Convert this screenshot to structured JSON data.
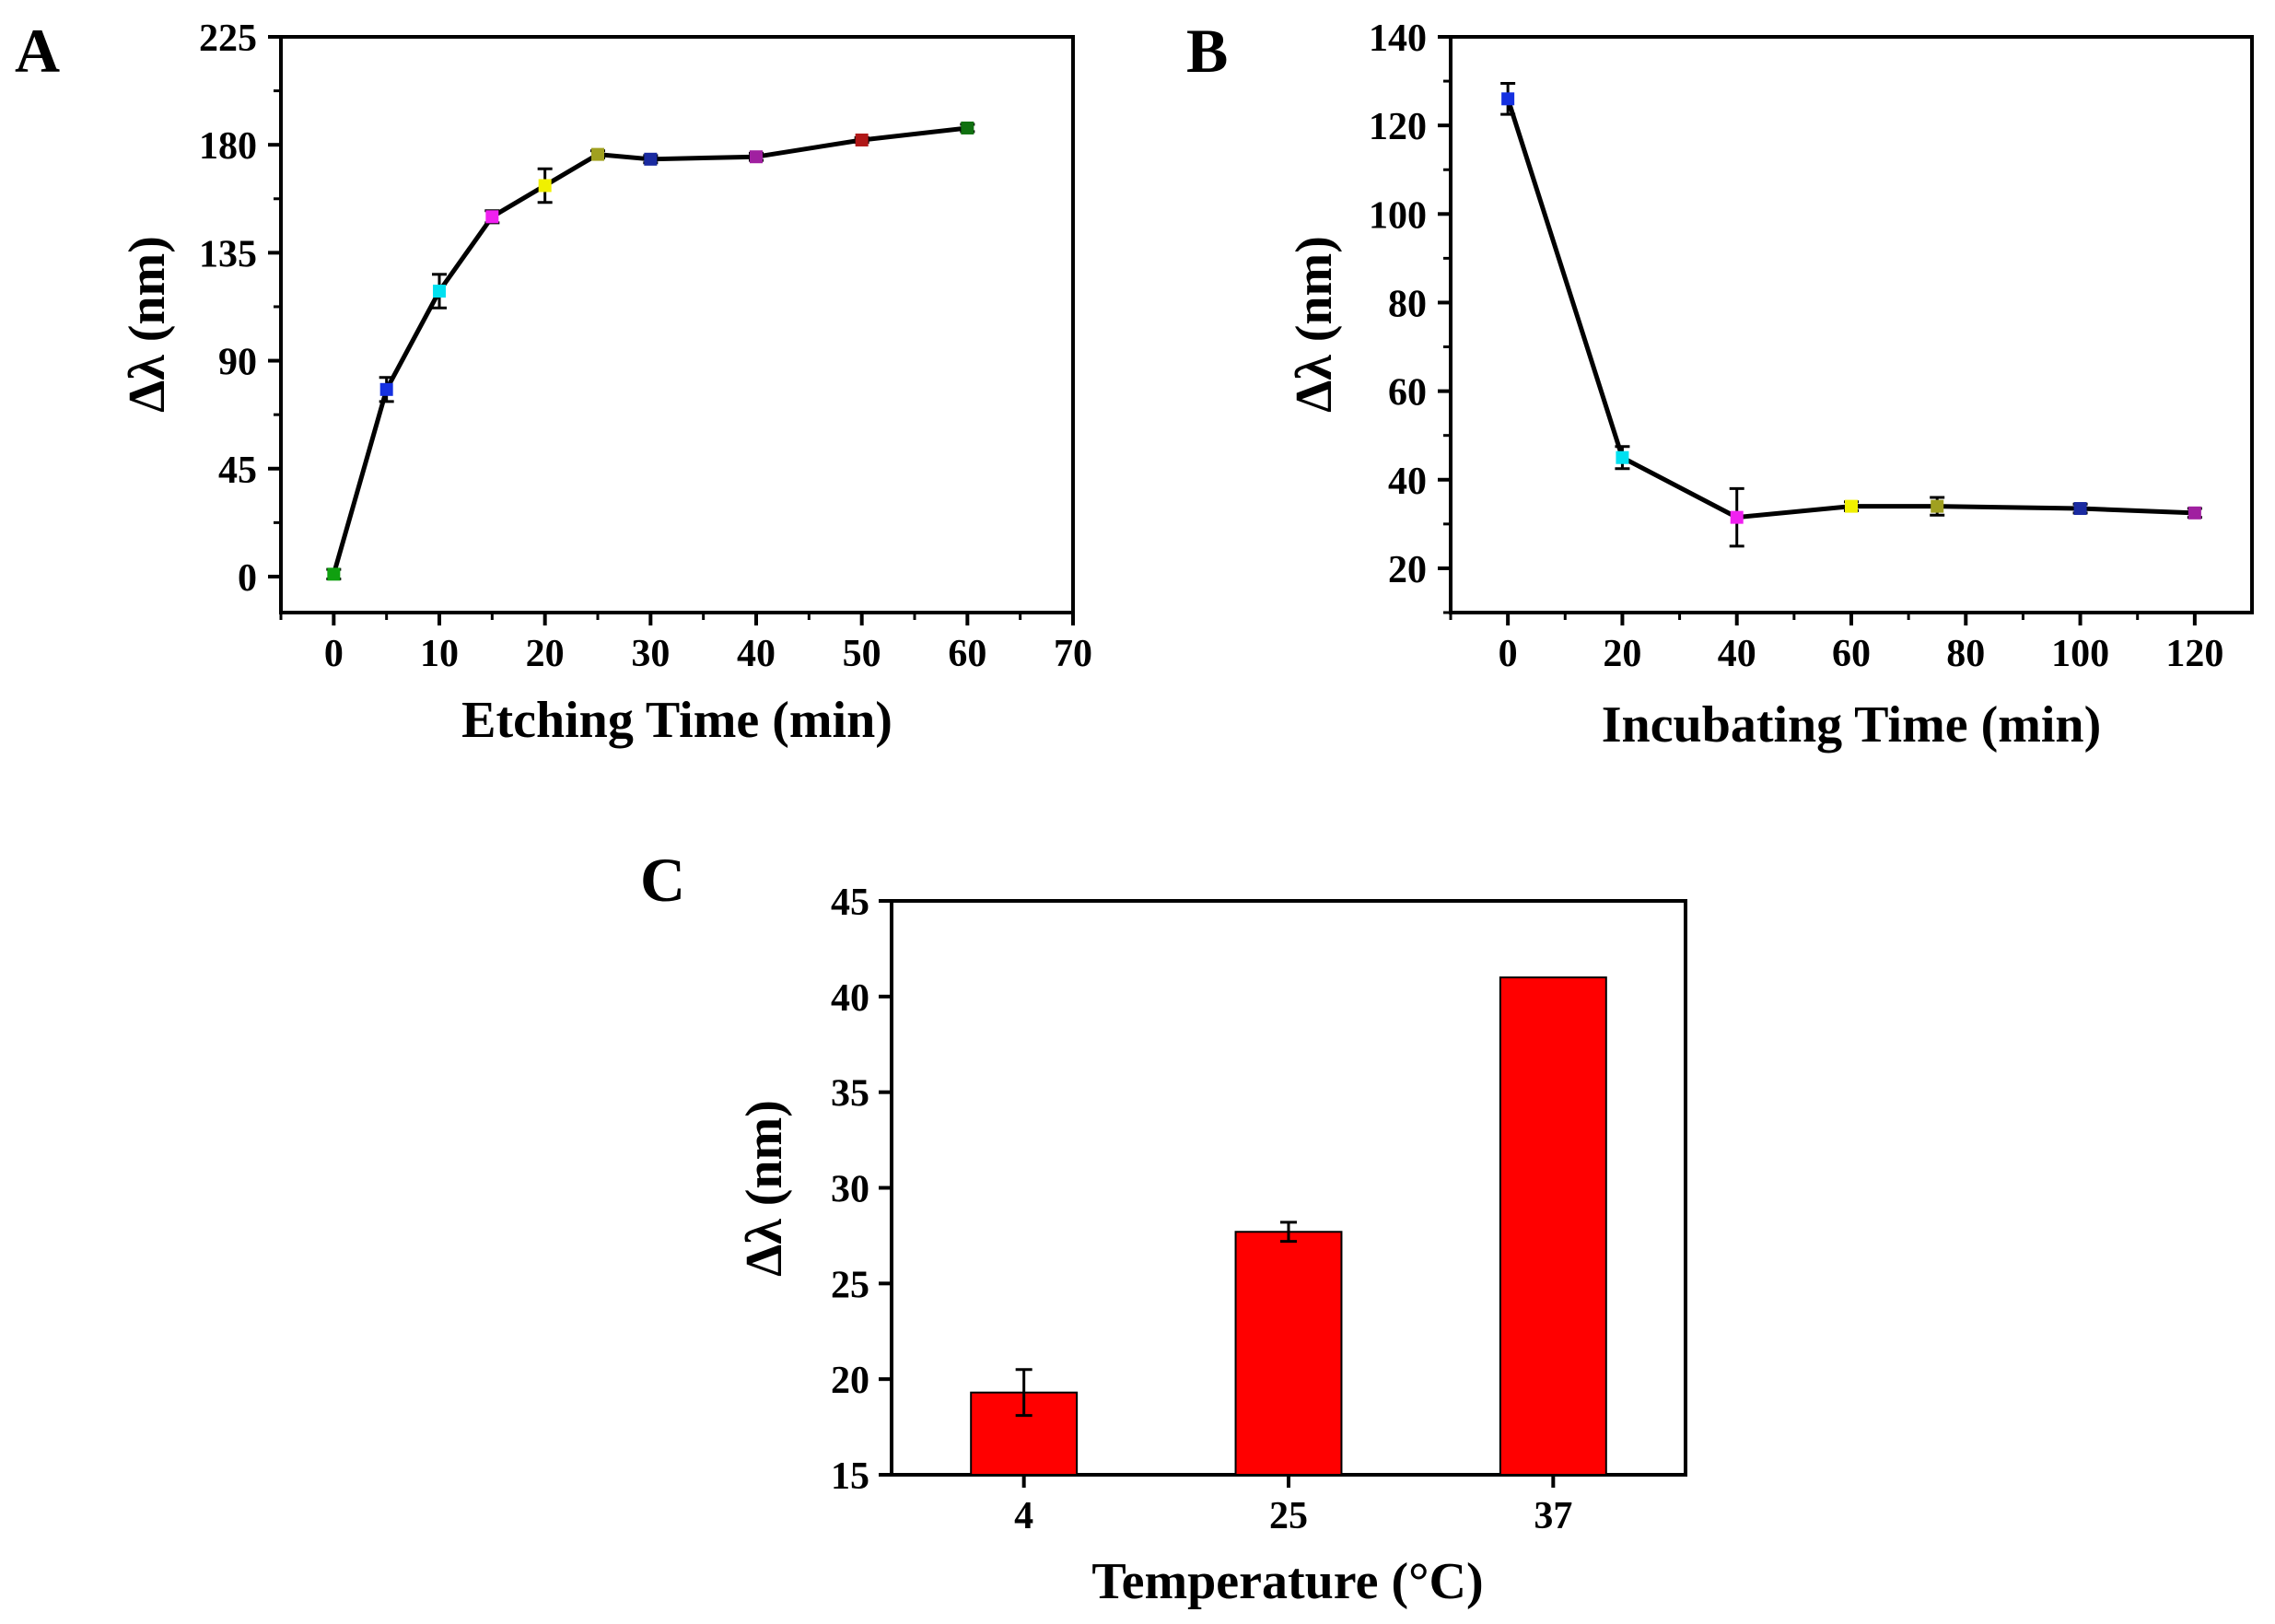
{
  "chart_data": [
    {
      "panel_label": "A",
      "type": "line",
      "xlabel": "Etching Time (min)",
      "ylabel": "Δλ (nm)",
      "xlim": [
        -5,
        70
      ],
      "ylim": [
        -15,
        225
      ],
      "xticks": [
        0,
        10,
        20,
        30,
        40,
        50,
        60,
        70
      ],
      "yticks": [
        0,
        45,
        90,
        135,
        180,
        225
      ],
      "grid": false,
      "legend": "none",
      "points": [
        {
          "x": 0,
          "y": 1,
          "err": 2,
          "color": "#10a010"
        },
        {
          "x": 5,
          "y": 78,
          "err": 5,
          "color": "#1530e0"
        },
        {
          "x": 10,
          "y": 119,
          "err": 7,
          "color": "#00e0f0"
        },
        {
          "x": 15,
          "y": 150,
          "err": 2.5,
          "color": "#f020f0"
        },
        {
          "x": 20,
          "y": 163,
          "err": 7,
          "color": "#f0f000"
        },
        {
          "x": 25,
          "y": 176,
          "err": 1.5,
          "color": "#a0a020"
        },
        {
          "x": 30,
          "y": 174,
          "err": 1.5,
          "color": "#1a2aa0"
        },
        {
          "x": 40,
          "y": 175,
          "err": 1.5,
          "color": "#a020a0"
        },
        {
          "x": 50,
          "y": 182,
          "err": 1,
          "color": "#b01818"
        },
        {
          "x": 60,
          "y": 187,
          "err": 1.5,
          "color": "#107010"
        }
      ],
      "line_color": "#000000"
    },
    {
      "panel_label": "B",
      "type": "line",
      "xlabel": "Incubating Time (min)",
      "ylabel": "Δλ (nm)",
      "xlim": [
        -10,
        130
      ],
      "ylim": [
        10,
        140
      ],
      "xticks": [
        0,
        20,
        40,
        60,
        80,
        100,
        120
      ],
      "yticks": [
        20,
        40,
        60,
        80,
        100,
        120,
        140
      ],
      "grid": false,
      "legend": "none",
      "points": [
        {
          "x": 0,
          "y": 126,
          "err": 3.5,
          "color": "#1530e0"
        },
        {
          "x": 20,
          "y": 45,
          "err": 2.5,
          "color": "#00e0f0"
        },
        {
          "x": 40,
          "y": 31.5,
          "err": 6.5,
          "color": "#f020f0"
        },
        {
          "x": 60,
          "y": 34,
          "err": 1,
          "color": "#f0f000"
        },
        {
          "x": 75,
          "y": 34,
          "err": 2,
          "color": "#a0a020"
        },
        {
          "x": 100,
          "y": 33.5,
          "err": 1,
          "color": "#1a2aa0"
        },
        {
          "x": 120,
          "y": 32.5,
          "err": 1,
          "color": "#a020a0"
        }
      ],
      "line_color": "#000000"
    },
    {
      "panel_label": "C",
      "type": "bar",
      "xlabel": "Temperature (°C)",
      "ylabel": "Δλ (nm)",
      "categories": [
        "4",
        "25",
        "37"
      ],
      "values": [
        19.3,
        27.7,
        41
      ],
      "errors": [
        1.2,
        0.5,
        0
      ],
      "ylim": [
        15,
        45
      ],
      "yticks": [
        15,
        20,
        25,
        30,
        35,
        40,
        45
      ],
      "grid": false,
      "legend": "none",
      "bar_color": "#ff0000"
    }
  ]
}
